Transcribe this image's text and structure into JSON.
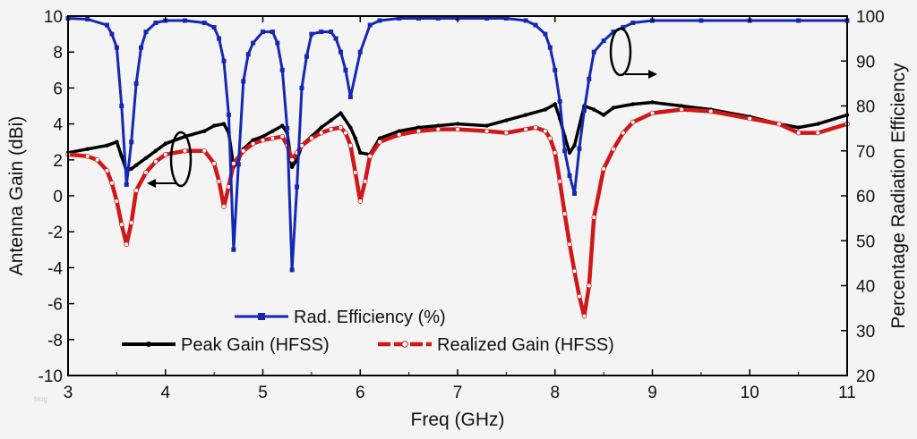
{
  "chart_data": {
    "type": "line",
    "xlabel": "Freq (GHz)",
    "ylabel": "Antenna Gain (dBi)",
    "y2label": "Percentage Radiation Efficiency",
    "xlim": [
      3,
      11
    ],
    "ylim": [
      -10,
      10
    ],
    "y2lim": [
      20,
      100
    ],
    "x_ticks": [
      "3",
      "4",
      "5",
      "6",
      "7",
      "8",
      "9",
      "10",
      "11"
    ],
    "y_ticks": [
      "-10",
      "-8",
      "-6",
      "-4",
      "-2",
      "0",
      "2",
      "4",
      "6",
      "8",
      "10"
    ],
    "y2_ticks": [
      "20",
      "30",
      "40",
      "50",
      "60",
      "70",
      "80",
      "90",
      "100"
    ],
    "grid": false,
    "watermark": "blog",
    "series": [
      {
        "name": "Rad. Efficiency (%)",
        "axis": "right",
        "color": "#1428b4",
        "marker": "square",
        "x": [
          3.0,
          3.2,
          3.4,
          3.45,
          3.5,
          3.55,
          3.6,
          3.65,
          3.7,
          3.75,
          3.8,
          3.9,
          4.0,
          4.2,
          4.4,
          4.5,
          4.55,
          4.6,
          4.65,
          4.7,
          4.75,
          4.8,
          4.85,
          4.9,
          5.0,
          5.1,
          5.15,
          5.2,
          5.25,
          5.3,
          5.35,
          5.4,
          5.45,
          5.5,
          5.6,
          5.7,
          5.75,
          5.8,
          5.85,
          5.9,
          6.0,
          6.1,
          6.2,
          6.4,
          6.6,
          6.8,
          7.0,
          7.3,
          7.5,
          7.7,
          7.8,
          7.9,
          7.95,
          8.0,
          8.05,
          8.1,
          8.15,
          8.2,
          8.25,
          8.3,
          8.35,
          8.4,
          8.5,
          8.6,
          8.7,
          8.8,
          9.0,
          9.5,
          10.0,
          10.5,
          11.0
        ],
        "values": [
          99.5,
          99.3,
          98.0,
          96.0,
          93.0,
          80.0,
          62.5,
          72.0,
          85.0,
          93.0,
          96.5,
          98.5,
          99.0,
          99.0,
          98.5,
          97.5,
          95.0,
          90.0,
          78.0,
          48.0,
          67.0,
          85.5,
          91.5,
          94.0,
          96.5,
          96.5,
          94.0,
          88.0,
          75.0,
          43.5,
          62.0,
          84.0,
          91.0,
          96.0,
          96.5,
          96.5,
          95.0,
          92.0,
          88.0,
          82.0,
          92.0,
          98.0,
          99.0,
          99.5,
          99.5,
          99.5,
          99.5,
          99.5,
          99.5,
          99.0,
          98.0,
          96.0,
          93.0,
          88.0,
          81.0,
          70.0,
          64.5,
          60.5,
          70.5,
          79.0,
          86.0,
          92.0,
          94.5,
          96.5,
          97.5,
          98.5,
          99.0,
          99.0,
          99.0,
          99.0,
          99.0
        ]
      },
      {
        "name": "Peak Gain (HFSS)",
        "axis": "left",
        "color": "#000000",
        "marker": "dot",
        "x": [
          3.0,
          3.2,
          3.4,
          3.5,
          3.55,
          3.6,
          3.65,
          3.7,
          3.8,
          3.9,
          4.0,
          4.2,
          4.4,
          4.5,
          4.6,
          4.65,
          4.7,
          4.75,
          4.8,
          4.9,
          5.0,
          5.1,
          5.2,
          5.25,
          5.3,
          5.35,
          5.4,
          5.5,
          5.6,
          5.7,
          5.8,
          5.9,
          5.95,
          6.0,
          6.1,
          6.2,
          6.4,
          6.6,
          6.8,
          7.0,
          7.3,
          7.5,
          7.7,
          7.9,
          8.0,
          8.05,
          8.1,
          8.15,
          8.2,
          8.3,
          8.4,
          8.5,
          8.6,
          8.8,
          9.0,
          9.3,
          9.6,
          10.0,
          10.3,
          10.5,
          10.7,
          11.0
        ],
        "values": [
          2.4,
          2.6,
          2.8,
          3.0,
          2.2,
          1.4,
          1.5,
          1.7,
          2.1,
          2.5,
          2.9,
          3.3,
          3.6,
          3.9,
          4.0,
          3.5,
          1.6,
          2.0,
          2.6,
          3.1,
          3.3,
          3.6,
          3.9,
          3.5,
          1.6,
          2.0,
          2.8,
          3.3,
          3.8,
          4.2,
          4.6,
          3.8,
          3.2,
          2.4,
          2.3,
          3.2,
          3.6,
          3.8,
          3.9,
          4.0,
          3.9,
          4.2,
          4.5,
          4.8,
          5.1,
          4.3,
          3.3,
          2.4,
          2.8,
          5.0,
          4.8,
          4.5,
          4.9,
          5.1,
          5.2,
          5.0,
          4.8,
          4.4,
          4.0,
          3.8,
          4.0,
          4.5
        ]
      },
      {
        "name": "Realized Gain (HFSS)",
        "axis": "left",
        "color": "#d01818",
        "marker": "open-circle",
        "x": [
          3.0,
          3.2,
          3.3,
          3.4,
          3.45,
          3.5,
          3.55,
          3.6,
          3.65,
          3.7,
          3.8,
          3.9,
          4.0,
          4.2,
          4.4,
          4.5,
          4.55,
          4.6,
          4.65,
          4.7,
          4.8,
          4.9,
          5.0,
          5.1,
          5.2,
          5.25,
          5.3,
          5.35,
          5.4,
          5.5,
          5.6,
          5.7,
          5.8,
          5.85,
          5.9,
          5.95,
          6.0,
          6.05,
          6.1,
          6.2,
          6.4,
          6.6,
          6.8,
          7.0,
          7.3,
          7.5,
          7.7,
          7.8,
          7.9,
          7.95,
          8.0,
          8.05,
          8.1,
          8.15,
          8.2,
          8.25,
          8.3,
          8.35,
          8.4,
          8.5,
          8.6,
          8.7,
          8.8,
          9.0,
          9.3,
          9.6,
          10.0,
          10.3,
          10.5,
          10.7,
          11.0
        ],
        "values": [
          2.3,
          2.2,
          2.0,
          1.4,
          0.7,
          -0.3,
          -1.6,
          -2.7,
          -1.5,
          0.3,
          1.3,
          1.9,
          2.3,
          2.5,
          2.5,
          1.8,
          0.8,
          -0.6,
          0.5,
          1.8,
          2.5,
          2.9,
          3.1,
          3.2,
          3.3,
          2.8,
          2.0,
          2.4,
          2.8,
          3.2,
          3.5,
          3.7,
          3.8,
          3.5,
          2.8,
          1.3,
          -0.3,
          0.8,
          2.2,
          3.0,
          3.4,
          3.6,
          3.7,
          3.7,
          3.6,
          3.5,
          3.7,
          3.8,
          3.6,
          3.2,
          2.4,
          0.8,
          -1.0,
          -2.7,
          -4.2,
          -5.6,
          -6.7,
          -5.0,
          -1.2,
          1.5,
          2.6,
          3.5,
          4.1,
          4.6,
          4.8,
          4.7,
          4.3,
          4.0,
          3.5,
          3.5,
          4.0
        ]
      }
    ]
  },
  "legend": {
    "efficiency_label": "Rad. Efficiency (%)",
    "peak_label": "Peak Gain (HFSS)",
    "realized_label": "Realized Gain (HFSS)"
  }
}
